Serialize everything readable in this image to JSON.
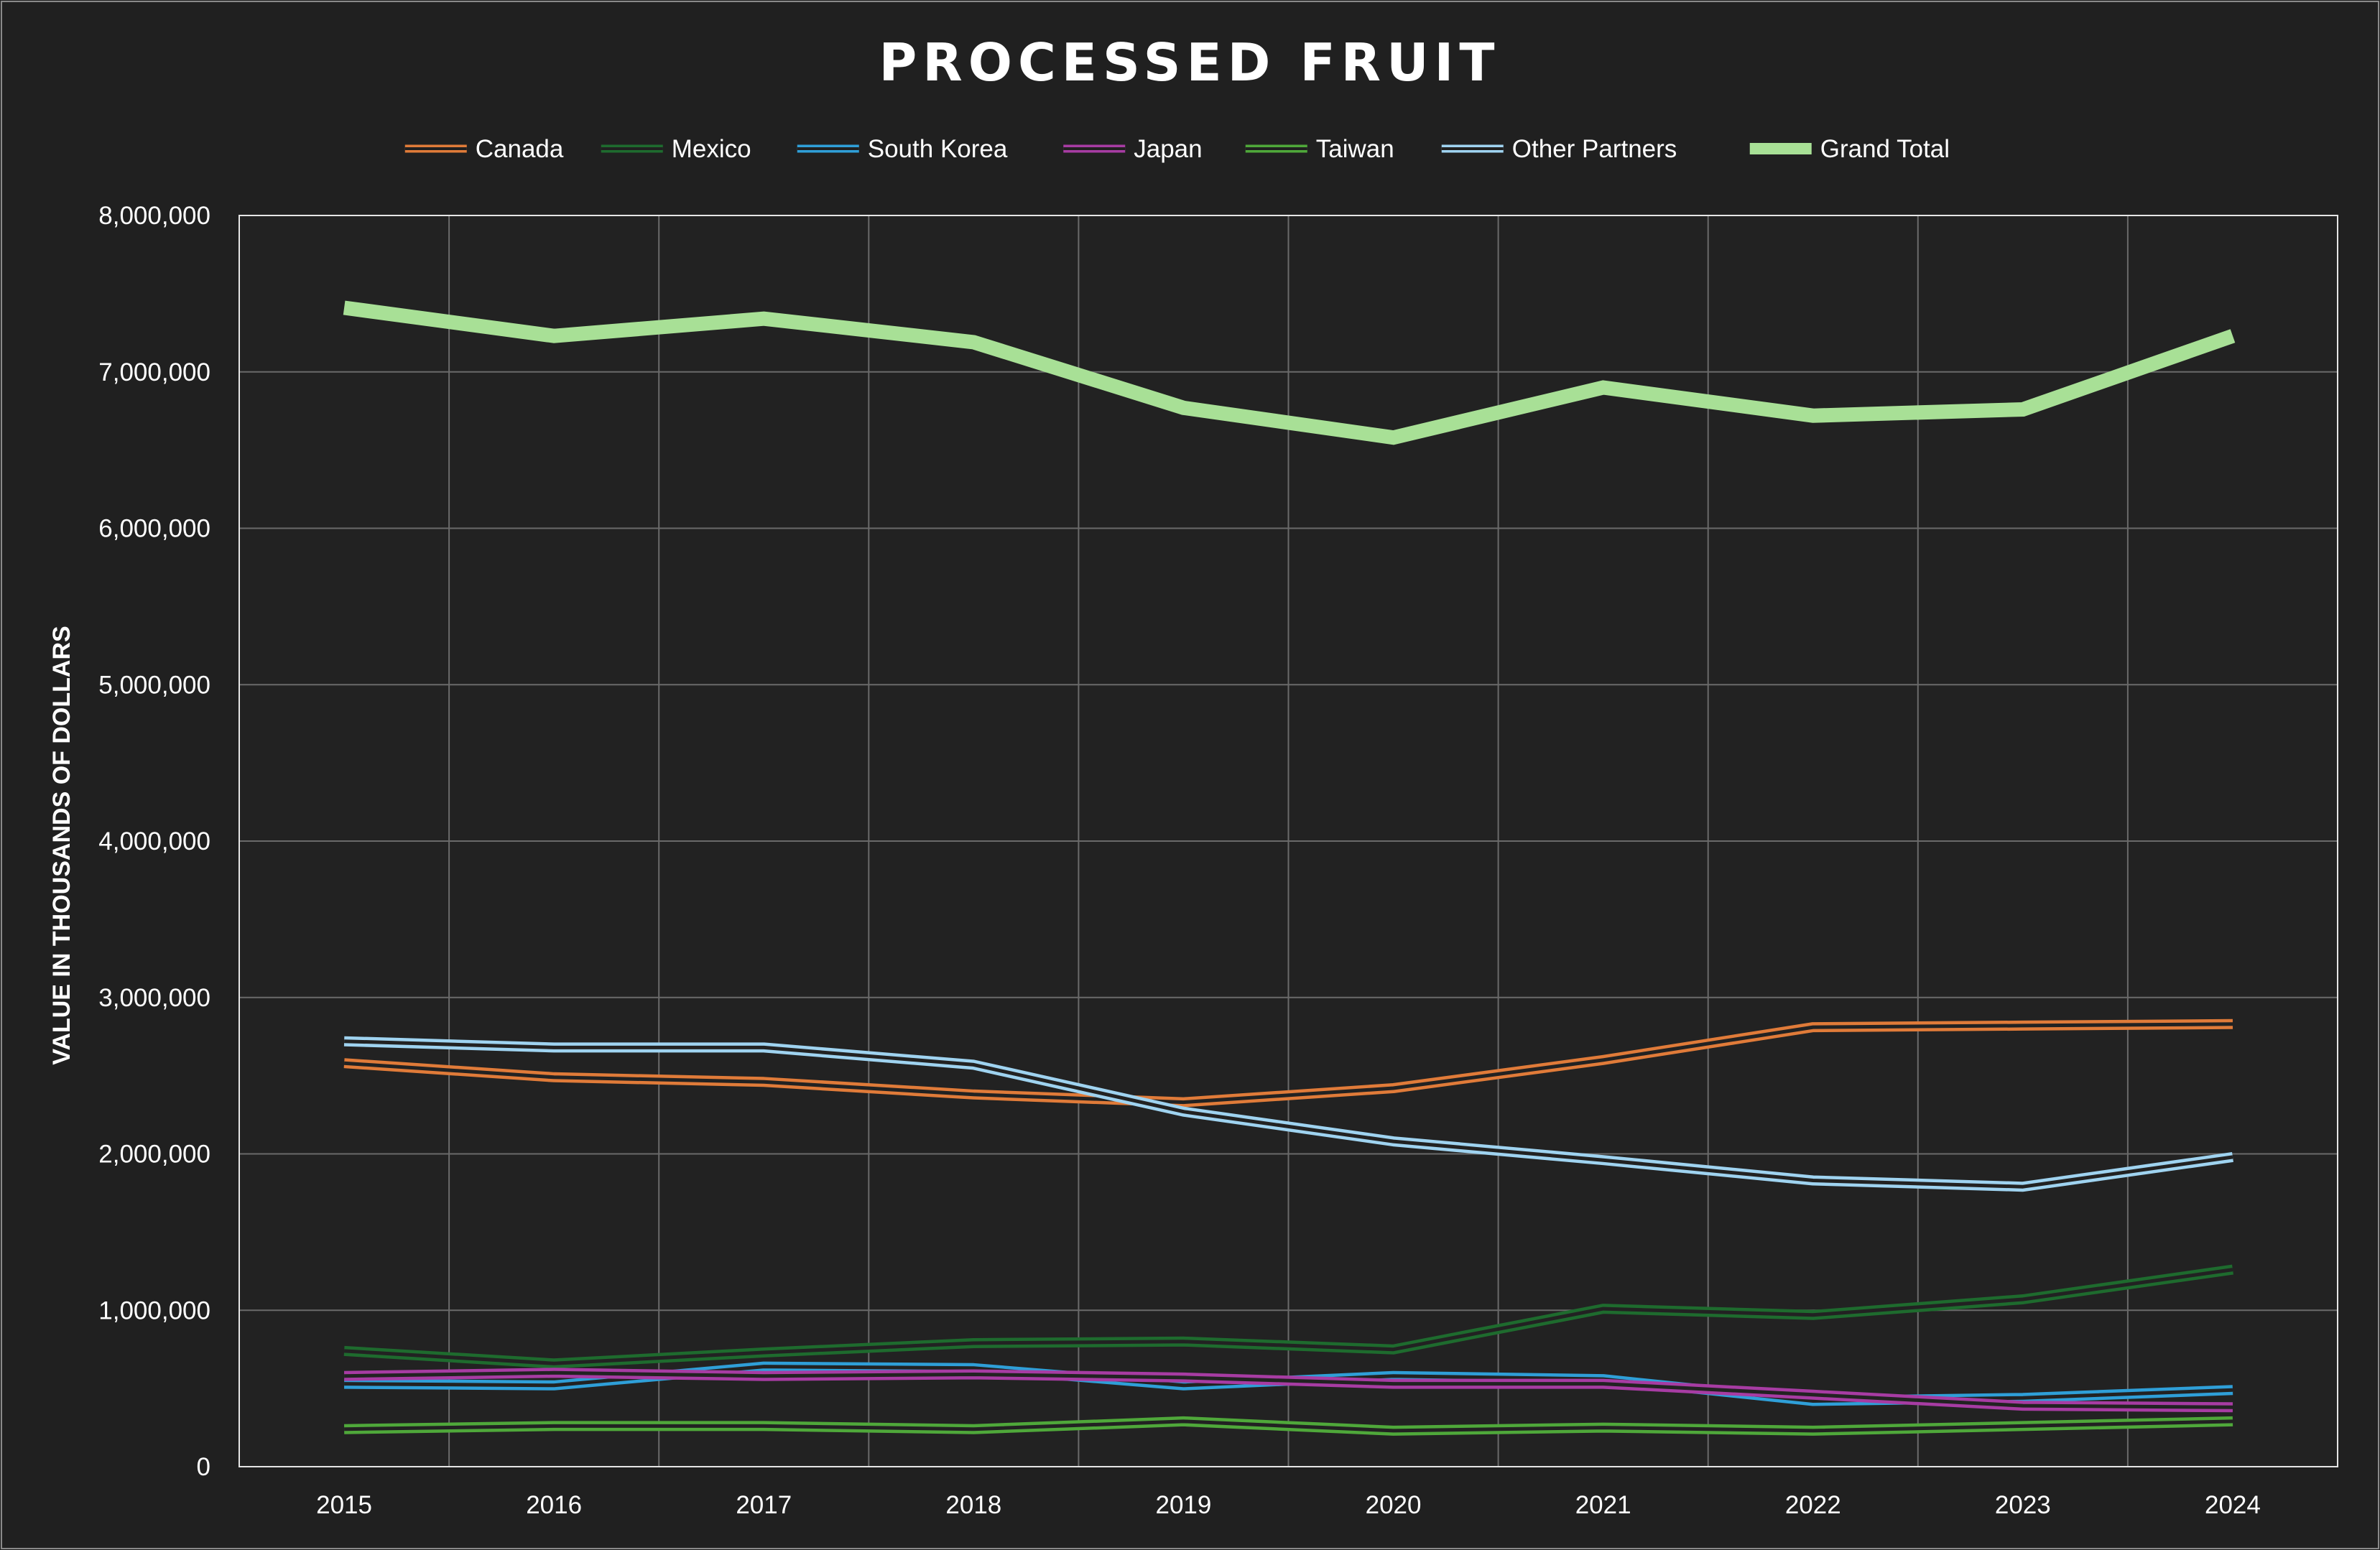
{
  "chart_data": {
    "type": "line",
    "title": "PROCESSED FRUIT",
    "xlabel": "",
    "ylabel": "VALUE IN THOUSANDS OF DOLLARS",
    "x": [
      "2015",
      "2016",
      "2017",
      "2018",
      "2019",
      "2020",
      "2021",
      "2022",
      "2023",
      "2024"
    ],
    "ylim": [
      0,
      8000000
    ],
    "yticks": [
      0,
      1000000,
      2000000,
      3000000,
      4000000,
      5000000,
      6000000,
      7000000,
      8000000
    ],
    "ytick_labels": [
      "0",
      "1,000,000",
      "2,000,000",
      "3,000,000",
      "4,000,000",
      "5,000,000",
      "6,000,000",
      "7,000,000",
      "8,000,000"
    ],
    "grid": true,
    "legend_position": "top",
    "series": [
      {
        "name": "Canada",
        "color": "#e07b39",
        "style": "double-line",
        "values": [
          2580000,
          2490000,
          2460000,
          2380000,
          2330000,
          2420000,
          2600000,
          2810000,
          2820000,
          2830000
        ]
      },
      {
        "name": "Mexico",
        "color": "#1e6b2e",
        "style": "double-line",
        "values": [
          740000,
          660000,
          730000,
          790000,
          800000,
          750000,
          1010000,
          970000,
          1070000,
          1260000
        ]
      },
      {
        "name": "South Korea",
        "color": "#2f9fd8",
        "style": "double-line",
        "values": [
          530000,
          520000,
          640000,
          630000,
          520000,
          580000,
          560000,
          420000,
          440000,
          490000
        ]
      },
      {
        "name": "Japan",
        "color": "#a73ca3",
        "style": "double-line",
        "values": [
          580000,
          600000,
          580000,
          590000,
          570000,
          530000,
          530000,
          460000,
          390000,
          380000
        ]
      },
      {
        "name": "Taiwan",
        "color": "#4fa83a",
        "style": "double-line",
        "values": [
          240000,
          260000,
          260000,
          240000,
          290000,
          230000,
          250000,
          230000,
          260000,
          290000
        ]
      },
      {
        "name": "Other Partners",
        "color": "#9fd3f0",
        "style": "double-line",
        "values": [
          2720000,
          2680000,
          2680000,
          2570000,
          2270000,
          2080000,
          1960000,
          1830000,
          1790000,
          1980000
        ]
      },
      {
        "name": "Grand Total",
        "color": "#a8e096",
        "style": "thick",
        "values": [
          7410000,
          7230000,
          7340000,
          7190000,
          6770000,
          6580000,
          6900000,
          6720000,
          6760000,
          7230000
        ]
      }
    ]
  }
}
